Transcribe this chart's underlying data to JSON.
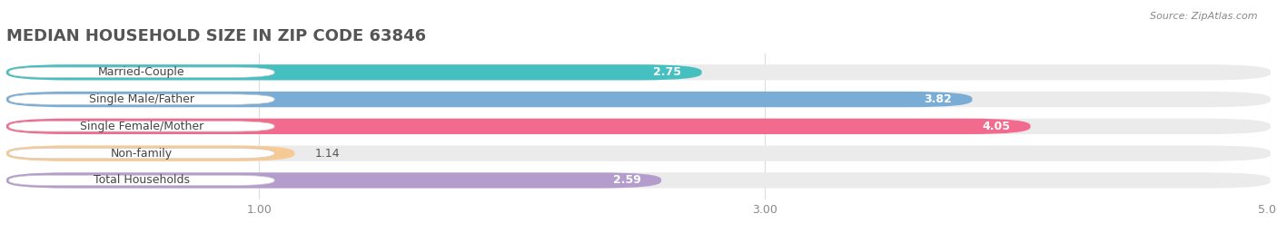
{
  "title": "MEDIAN HOUSEHOLD SIZE IN ZIP CODE 63846",
  "source": "Source: ZipAtlas.com",
  "categories": [
    "Married-Couple",
    "Single Male/Father",
    "Single Female/Mother",
    "Non-family",
    "Total Households"
  ],
  "values": [
    2.75,
    3.82,
    4.05,
    1.14,
    2.59
  ],
  "bar_colors": [
    "#45BFBF",
    "#7AADD6",
    "#F26A8D",
    "#F7CA95",
    "#B49DCC"
  ],
  "bar_dark_colors": [
    "#38ACAC",
    "#6A9DC6",
    "#E05A7D",
    "#E8B880",
    "#A08DBB"
  ],
  "xlim_start": 0,
  "xlim_end": 5.0,
  "xticks": [
    1.0,
    3.0,
    5.0
  ],
  "background_color": "#ffffff",
  "bar_bg_color": "#ebebeb",
  "title_fontsize": 13,
  "label_fontsize": 9,
  "value_fontsize": 9,
  "bar_height": 0.58,
  "value_inside_threshold": 2.0
}
